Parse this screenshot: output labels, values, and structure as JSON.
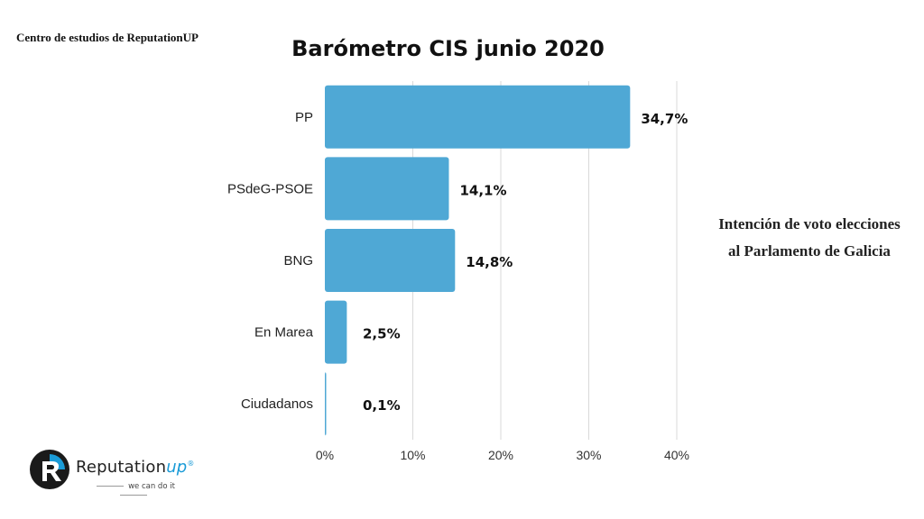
{
  "source_label": "Centro de estudios de ReputationUP",
  "side_note": [
    "Intención de voto elecciones",
    "al Parlamento de Galicia"
  ],
  "logo": {
    "name": "Reputation",
    "name_accent": "up",
    "registered": "®",
    "tagline": "we can do it"
  },
  "colors": {
    "bar": "#4fa8d5",
    "grid": "#d9d9d9",
    "text": "#111111",
    "brand": "#1a9bd7"
  },
  "chart_data": {
    "type": "bar",
    "orientation": "horizontal",
    "title": "Barómetro CIS junio 2020",
    "categories": [
      "PP",
      "PSdeG-PSOE",
      "BNG",
      "En Marea",
      "Ciudadanos"
    ],
    "values": [
      34.7,
      14.1,
      14.8,
      2.5,
      0.1
    ],
    "data_labels": [
      "34,7%",
      "14,1%",
      "14,8%",
      "2,5%",
      "0,1%"
    ],
    "xticks": [
      "0%",
      "10%",
      "20%",
      "30%",
      "40%"
    ],
    "xlim": [
      0,
      40
    ],
    "grid": true,
    "xlabel": "",
    "ylabel": ""
  }
}
